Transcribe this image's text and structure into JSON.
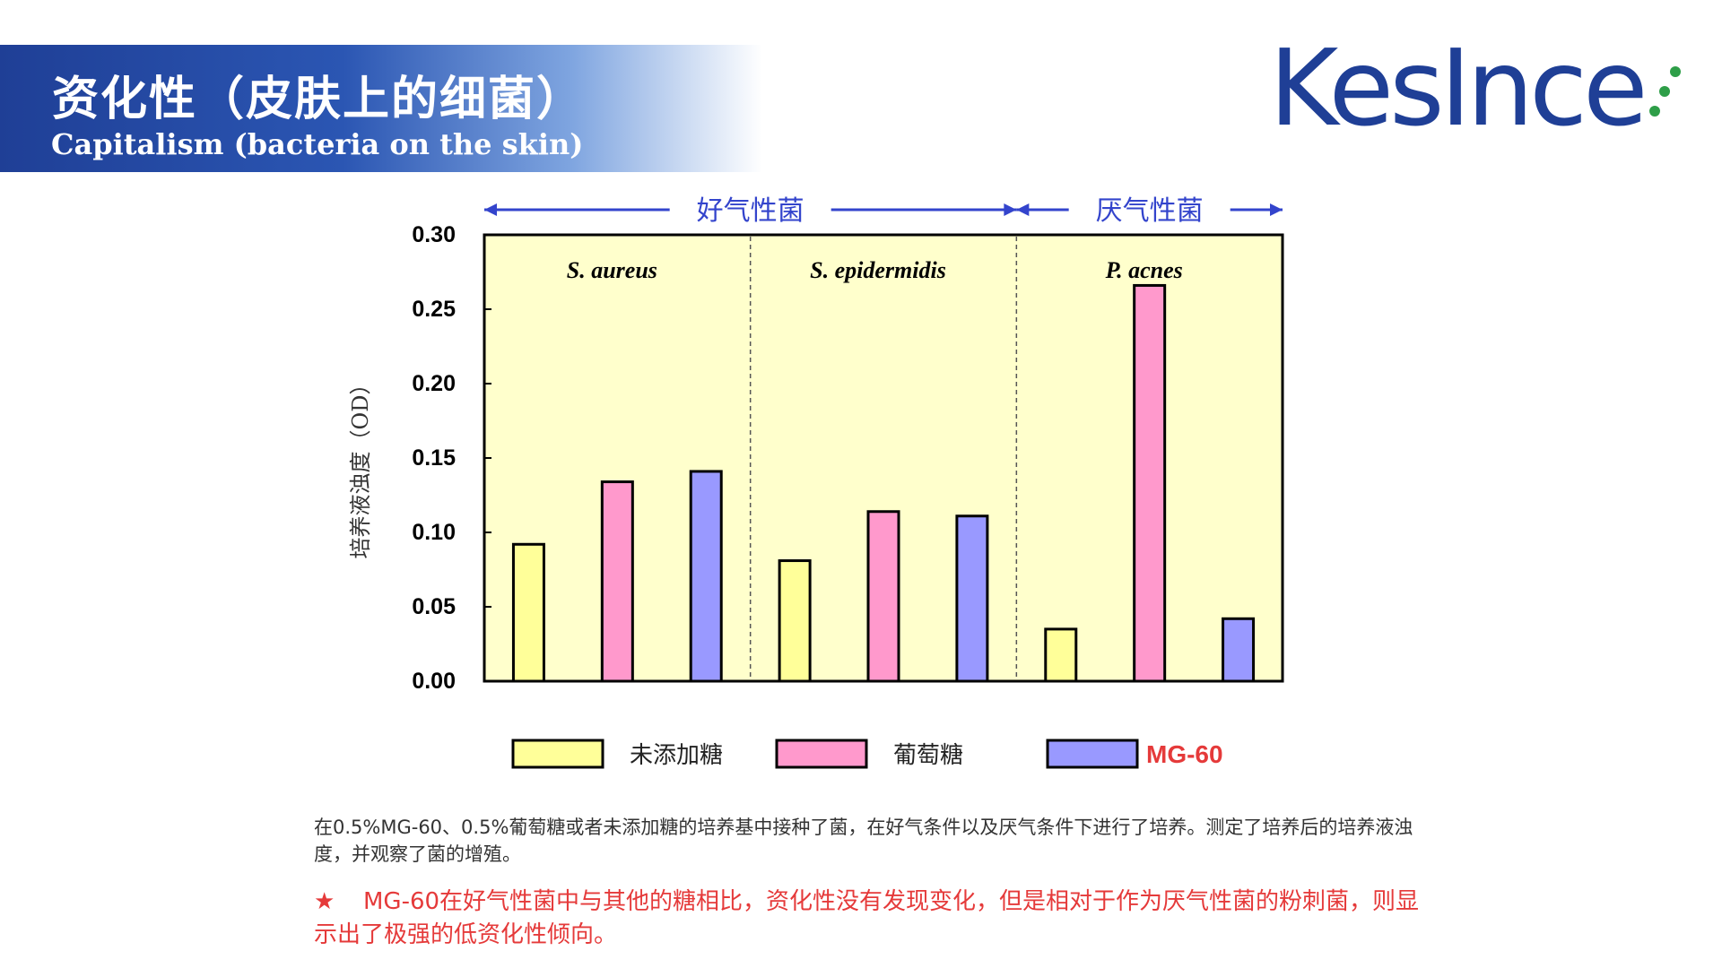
{
  "header": {
    "title_cn": "资化性（皮肤上的细菌）",
    "title_en": "Capitalism (bacteria on the skin)"
  },
  "logo": {
    "text": "KesInce",
    "dot_color": "#2e9e48"
  },
  "colors": {
    "banner": "#1f3f96",
    "plot_bg": "#ffffcc",
    "arrow": "#3344cc",
    "note_red": "#e53a3a"
  },
  "chart_data": {
    "type": "bar",
    "ylabel": "培养液浊度（OD）",
    "ylim": [
      0,
      0.3
    ],
    "yticks": [
      "0.00",
      "0.05",
      "0.10",
      "0.15",
      "0.20",
      "0.25",
      "0.30"
    ],
    "ytick_values": [
      0,
      0.05,
      0.1,
      0.15,
      0.2,
      0.25,
      0.3
    ],
    "grid": false,
    "legend_position": "bottom",
    "categories": [
      "S. aureus",
      "S. epidermidis",
      "P. acnes"
    ],
    "groups": [
      {
        "label": "好气性菌",
        "categories": [
          0,
          1
        ]
      },
      {
        "label": "厌气性菌",
        "categories": [
          2
        ]
      }
    ],
    "series": [
      {
        "name": "未添加糖",
        "color": "#ffff99",
        "values": [
          0.092,
          0.081,
          0.035
        ]
      },
      {
        "name": "葡萄糖",
        "color": "#ff99cc",
        "values": [
          0.134,
          0.114,
          0.266
        ]
      },
      {
        "name": "MG-60",
        "color": "#9999ff",
        "values": [
          0.141,
          0.111,
          0.042
        ]
      }
    ]
  },
  "notes": {
    "description": "在0.5%MG-60、0.5%葡萄糖或者未添加糖的培养基中接种了菌，在好气条件以及厌气条件下进行了培养。测定了培养后的培养液浊度，并观察了菌的增殖。",
    "star_symbol": "★",
    "conclusion": "MG-60在好气性菌中与其他的糖相比，资化性没有发现变化，但是相对于作为厌气性菌的粉刺菌，则显示出了极强的低资化性倾向。"
  }
}
